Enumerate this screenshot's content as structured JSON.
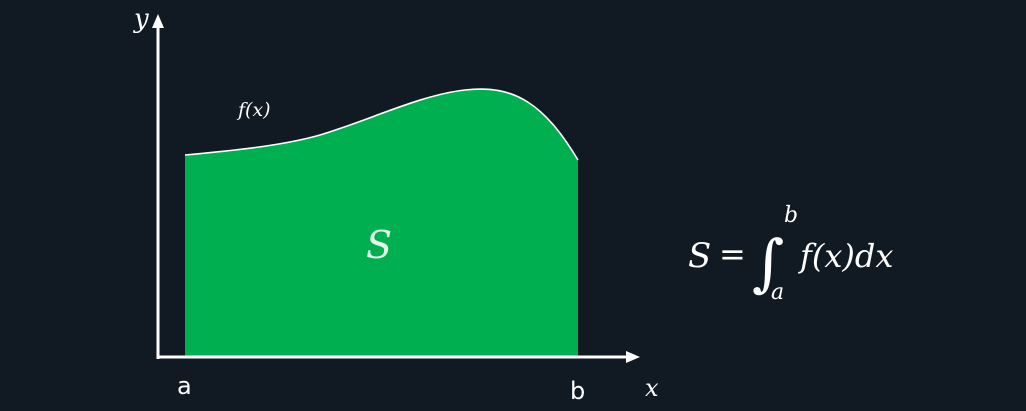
{
  "colors": {
    "background": "#111a23",
    "area_fill": "#00b050",
    "axis": "#ffffff",
    "curve": "#ffffff",
    "text": "#ffffff",
    "area_label": "#e6f2ea"
  },
  "axes": {
    "y_label": "y",
    "x_label": "x"
  },
  "curve_label": "f(x)",
  "area_label": "S",
  "bounds": {
    "lower": "a",
    "upper": "b"
  },
  "formula": {
    "lhs": "S",
    "equals": "=",
    "integral_sign": "∫",
    "upper_limit": "b",
    "lower_limit": "a",
    "integrand": "f(x)dx"
  }
}
